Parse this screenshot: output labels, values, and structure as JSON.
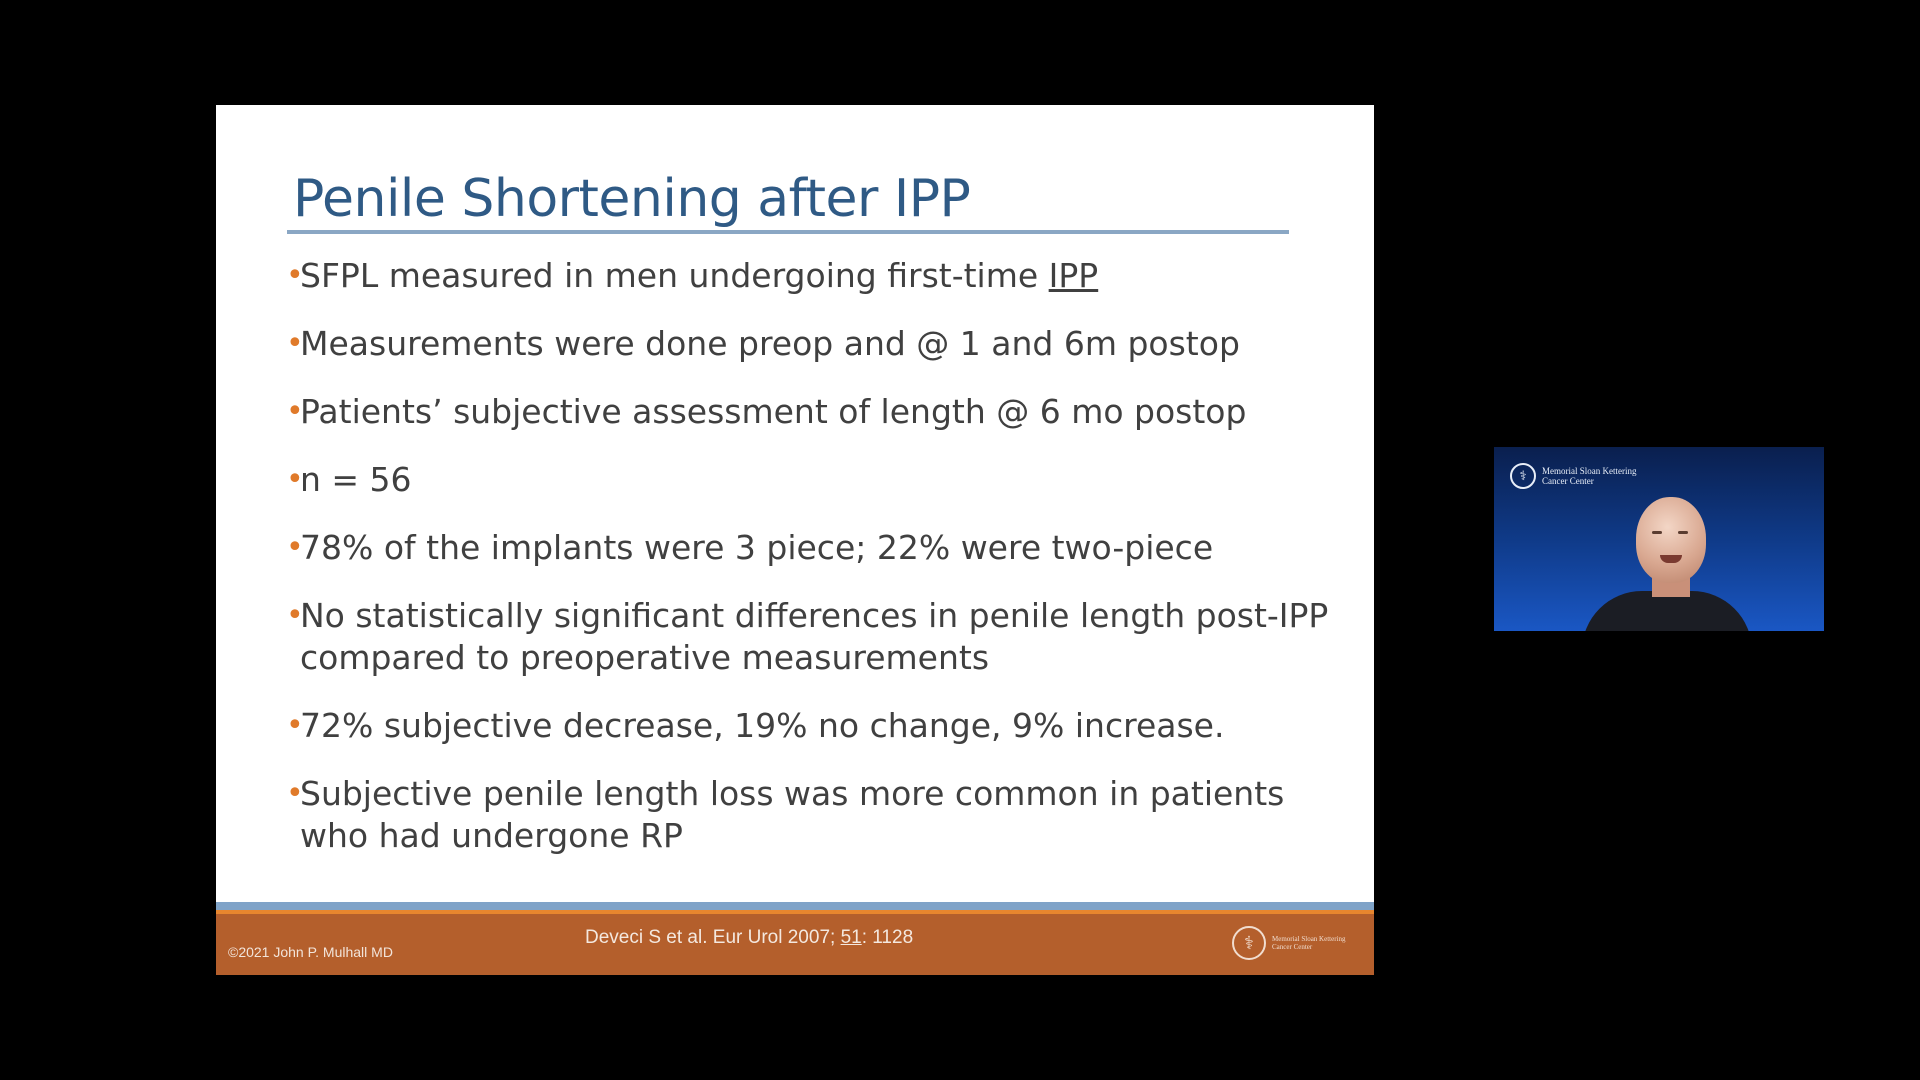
{
  "slide": {
    "title": "Penile Shortening after IPP",
    "bullets": [
      {
        "text": "SFPL measured in men undergoing first-time ",
        "underlined": "IPP"
      },
      {
        "text": "Measurements were done preop and @ 1 and 6m postop"
      },
      {
        "text": "Patients’ subjective assessment of length @ 6 mo postop"
      },
      {
        "text": "n = 56"
      },
      {
        "text": "78% of the implants were 3 piece; 22% were two-piece"
      },
      {
        "text": "No statistically significant differences in penile length post-IPP",
        "line2": "compared to preoperative measurements"
      },
      {
        "text": "72% subjective decrease, 19% no change, 9% increase."
      },
      {
        "text": "Subjective penile length loss was more common in patients",
        "line2": "who had undergone RP"
      }
    ],
    "footer": {
      "copyright": "©2021 John P. Mulhall MD",
      "citation_pre": "Deveci S et al. Eur Urol 2007; ",
      "citation_volume": "51",
      "citation_post": ": 1128",
      "logo_text": "Memorial Sloan Kettering Cancer Center"
    }
  },
  "video_tile": {
    "logo_line1": "Memorial Sloan Kettering",
    "logo_line2": "Cancer Center",
    "icon": "speaker-camera-feed"
  },
  "colors": {
    "title": "#2f5a85",
    "bullet_marker": "#e07a2a",
    "footer_band": "#b45f2c",
    "video_background": "#0f3a88"
  }
}
